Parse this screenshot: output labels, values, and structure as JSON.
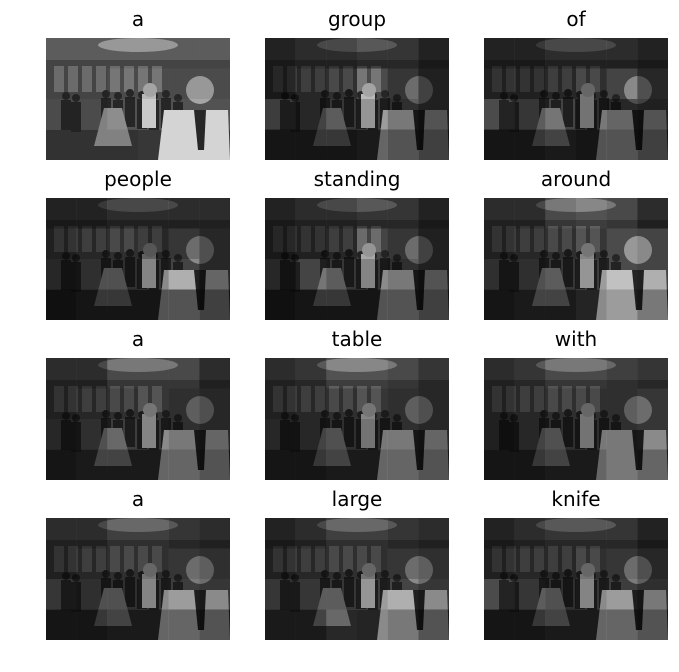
{
  "figure": {
    "image_style": "grayscale photo with per-word attention mask",
    "panels": [
      {
        "word": "a",
        "attention": [
          [
            0.7,
            0.7,
            0.7,
            0.7,
            0.7,
            0.7
          ],
          [
            0.7,
            0.7,
            0.8,
            0.8,
            0.8,
            0.8
          ],
          [
            0.8,
            0.8,
            0.9,
            0.9,
            0.9,
            0.9
          ],
          [
            0.8,
            0.8,
            0.8,
            0.9,
            0.9,
            0.9
          ]
        ]
      },
      {
        "word": "group",
        "attention": [
          [
            0.1,
            0.2,
            0.2,
            0.3,
            0.3,
            0.1
          ],
          [
            0.1,
            0.3,
            0.4,
            0.8,
            0.5,
            0.2
          ],
          [
            0.6,
            0.3,
            0.5,
            0.6,
            0.4,
            0.2
          ],
          [
            0.2,
            0.2,
            0.2,
            0.3,
            0.2,
            0.1
          ]
        ]
      },
      {
        "word": "of",
        "attention": [
          [
            0.1,
            0.1,
            0.2,
            0.2,
            0.2,
            0.1
          ],
          [
            0.2,
            0.2,
            0.3,
            0.4,
            0.7,
            0.3
          ],
          [
            0.8,
            0.5,
            0.7,
            0.4,
            0.3,
            0.2
          ],
          [
            0.2,
            0.2,
            0.3,
            0.2,
            0.2,
            0.1
          ]
        ]
      },
      {
        "word": "people",
        "attention": [
          [
            0.1,
            0.1,
            0.2,
            0.2,
            0.2,
            0.2
          ],
          [
            0.2,
            0.3,
            0.4,
            0.3,
            0.5,
            0.3
          ],
          [
            0.3,
            0.4,
            0.4,
            0.5,
            0.7,
            0.3
          ],
          [
            0.1,
            0.2,
            0.2,
            0.2,
            0.2,
            0.1
          ]
        ]
      },
      {
        "word": "standing",
        "attention": [
          [
            0.1,
            0.2,
            0.2,
            0.3,
            0.3,
            0.1
          ],
          [
            0.1,
            0.2,
            0.3,
            0.7,
            0.5,
            0.2
          ],
          [
            0.3,
            0.7,
            0.5,
            0.5,
            0.4,
            0.2
          ],
          [
            0.1,
            0.2,
            0.2,
            0.2,
            0.2,
            0.1
          ]
        ]
      },
      {
        "word": "around",
        "attention": [
          [
            0.2,
            0.2,
            0.5,
            0.6,
            0.5,
            0.2
          ],
          [
            0.2,
            0.3,
            0.4,
            0.5,
            0.8,
            0.7
          ],
          [
            0.4,
            0.4,
            0.5,
            0.6,
            0.8,
            0.7
          ],
          [
            0.2,
            0.3,
            0.3,
            0.5,
            0.6,
            0.4
          ]
        ]
      },
      {
        "word": "a",
        "attention": [
          [
            0.2,
            0.2,
            0.5,
            0.5,
            0.5,
            0.2
          ],
          [
            0.2,
            0.3,
            0.4,
            0.5,
            0.4,
            0.3
          ],
          [
            0.3,
            0.4,
            0.6,
            0.5,
            0.4,
            0.3
          ],
          [
            0.2,
            0.3,
            0.3,
            0.3,
            0.3,
            0.2
          ]
        ]
      },
      {
        "word": "table",
        "attention": [
          [
            0.2,
            0.3,
            0.6,
            0.6,
            0.5,
            0.3
          ],
          [
            0.2,
            0.3,
            0.4,
            0.5,
            0.4,
            0.3
          ],
          [
            0.3,
            0.3,
            0.4,
            0.4,
            0.4,
            0.3
          ],
          [
            0.2,
            0.2,
            0.3,
            0.3,
            0.3,
            0.2
          ]
        ]
      },
      {
        "word": "with",
        "attention": [
          [
            0.2,
            0.3,
            0.5,
            0.5,
            0.4,
            0.3
          ],
          [
            0.2,
            0.3,
            0.4,
            0.4,
            0.4,
            0.5
          ],
          [
            0.2,
            0.3,
            0.4,
            0.4,
            0.4,
            0.5
          ],
          [
            0.2,
            0.2,
            0.3,
            0.3,
            0.4,
            0.3
          ]
        ]
      },
      {
        "word": "a",
        "attention": [
          [
            0.2,
            0.2,
            0.4,
            0.4,
            0.3,
            0.2
          ],
          [
            0.2,
            0.3,
            0.4,
            0.4,
            0.5,
            0.4
          ],
          [
            0.5,
            0.4,
            0.4,
            0.5,
            0.6,
            0.5
          ],
          [
            0.2,
            0.2,
            0.3,
            0.3,
            0.3,
            0.2
          ]
        ]
      },
      {
        "word": "large",
        "attention": [
          [
            0.1,
            0.2,
            0.4,
            0.4,
            0.3,
            0.2
          ],
          [
            0.2,
            0.3,
            0.4,
            0.4,
            0.5,
            0.4
          ],
          [
            0.5,
            0.5,
            0.5,
            0.6,
            0.7,
            0.5
          ],
          [
            0.3,
            0.3,
            0.6,
            0.5,
            0.4,
            0.2
          ]
        ]
      },
      {
        "word": "knife",
        "attention": [
          [
            0.1,
            0.2,
            0.3,
            0.3,
            0.3,
            0.1
          ],
          [
            0.2,
            0.3,
            0.3,
            0.4,
            0.5,
            0.3
          ],
          [
            0.8,
            0.5,
            0.4,
            0.5,
            0.6,
            0.4
          ],
          [
            0.2,
            0.2,
            0.3,
            0.3,
            0.3,
            0.2
          ]
        ]
      }
    ]
  }
}
